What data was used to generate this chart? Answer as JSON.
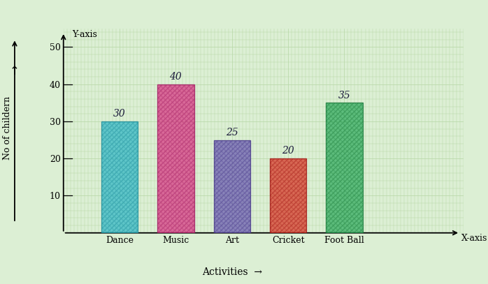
{
  "categories": [
    "Dance",
    "Music",
    "Art",
    "Cricket",
    "Foot Ball"
  ],
  "values": [
    30,
    40,
    25,
    20,
    35
  ],
  "bar_colors": [
    "#2ab5c5",
    "#d93080",
    "#6655b0",
    "#d83020",
    "#28a858"
  ],
  "bar_edge_colors": [
    "#1a8a9a",
    "#a01860",
    "#443388",
    "#a01010",
    "#187838"
  ],
  "value_labels": [
    "30",
    "40",
    "25",
    "20",
    "35"
  ],
  "ylabel": "No of childern",
  "xlabel_main": "Activities",
  "yaxis_label": "Y-axis",
  "xaxis_label": "X-axis",
  "yticks": [
    10,
    20,
    30,
    40,
    50
  ],
  "ylim": [
    0,
    55
  ],
  "background_color": "#dcefd4",
  "grid_color": "#b8d8a8",
  "label_fontsize": 9,
  "tick_fontsize": 9,
  "value_fontsize": 10
}
